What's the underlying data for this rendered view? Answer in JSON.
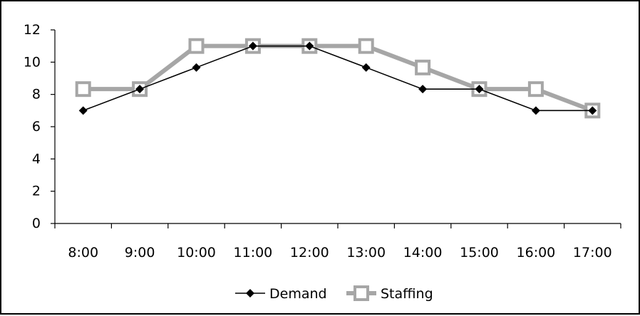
{
  "chart_data": {
    "type": "line",
    "title": "",
    "xlabel": "",
    "ylabel": "",
    "categories": [
      "8:00",
      "9:00",
      "10:00",
      "11:00",
      "12:00",
      "13:00",
      "14:00",
      "15:00",
      "16:00",
      "17:00"
    ],
    "yticks": [
      "0",
      "2",
      "4",
      "6",
      "8",
      "10",
      "12"
    ],
    "ylim": [
      0,
      12
    ],
    "grid": false,
    "legend_position": "bottom",
    "series": [
      {
        "name": "Demand",
        "values": [
          7,
          8.33,
          9.67,
          11,
          11,
          9.67,
          8.33,
          8.33,
          7,
          7
        ],
        "color": "#000000",
        "marker": "diamond"
      },
      {
        "name": "Staffing",
        "values": [
          8.33,
          8.33,
          11,
          11,
          11,
          11,
          9.67,
          8.33,
          8.33,
          7
        ],
        "color": "#a6a6a6",
        "marker": "square"
      }
    ]
  }
}
